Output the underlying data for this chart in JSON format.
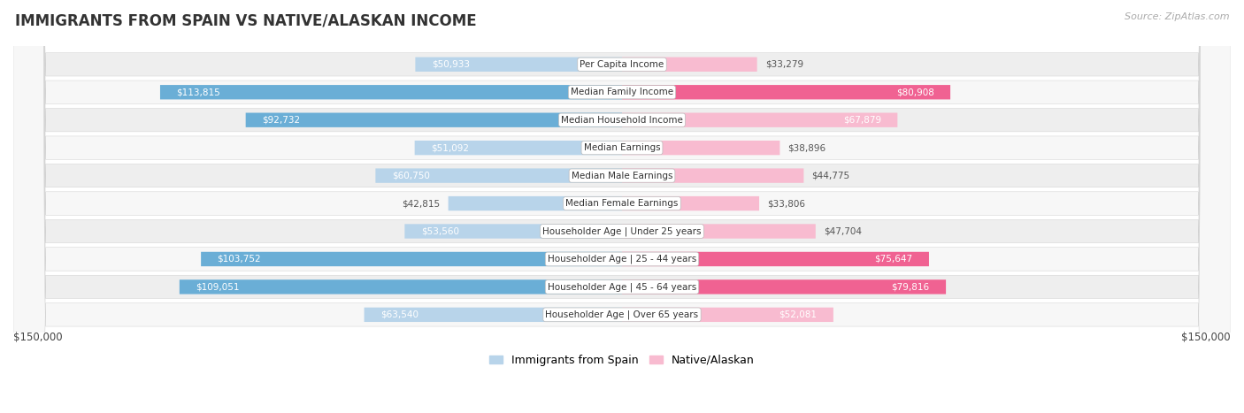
{
  "title": "IMMIGRANTS FROM SPAIN VS NATIVE/ALASKAN INCOME",
  "source": "Source: ZipAtlas.com",
  "categories": [
    "Per Capita Income",
    "Median Family Income",
    "Median Household Income",
    "Median Earnings",
    "Median Male Earnings",
    "Median Female Earnings",
    "Householder Age | Under 25 years",
    "Householder Age | 25 - 44 years",
    "Householder Age | 45 - 64 years",
    "Householder Age | Over 65 years"
  ],
  "spain_values": [
    50933,
    113815,
    92732,
    51092,
    60750,
    42815,
    53560,
    103752,
    109051,
    63540
  ],
  "native_values": [
    33279,
    80908,
    67879,
    38896,
    44775,
    33806,
    47704,
    75647,
    79816,
    52081
  ],
  "spain_labels": [
    "$50,933",
    "$113,815",
    "$92,732",
    "$51,092",
    "$60,750",
    "$42,815",
    "$53,560",
    "$103,752",
    "$109,051",
    "$63,540"
  ],
  "native_labels": [
    "$33,279",
    "$80,908",
    "$67,879",
    "$38,896",
    "$44,775",
    "$33,806",
    "$47,704",
    "$75,647",
    "$79,816",
    "$52,081"
  ],
  "max_value": 150000,
  "spain_color_dark": "#6aaed6",
  "spain_color_light": "#b8d4ea",
  "native_color_dark": "#f06292",
  "native_color_light": "#f8bbd0",
  "dark_threshold": 70000,
  "bar_height": 0.52,
  "background_color": "#ffffff",
  "row_bg_odd": "#eeeeee",
  "row_bg_even": "#f7f7f7",
  "legend_spain": "Immigrants from Spain",
  "legend_native": "Native/Alaskan",
  "xlabel_left": "$150,000",
  "xlabel_right": "$150,000"
}
